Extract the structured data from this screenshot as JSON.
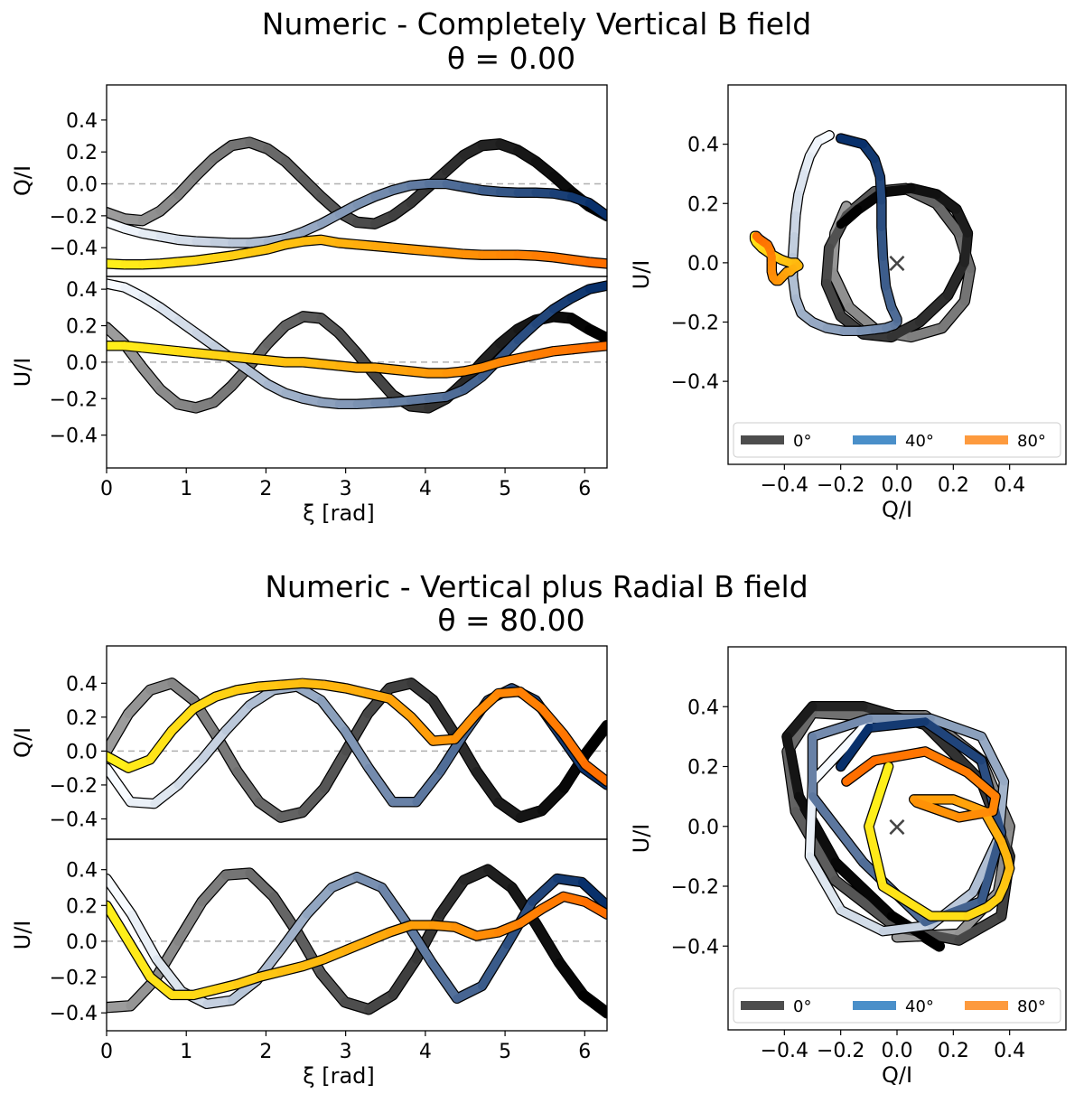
{
  "figure": {
    "colors": {
      "grayscale": "#000000",
      "blues": "#08306b",
      "oranges": "#ff6f00",
      "yellow_start": "#ffef1a",
      "legend_0": "#4d4d4d",
      "legend_40": "#4a8fc9",
      "legend_80": "#fd9a3e"
    },
    "legend": [
      "0°",
      "40°",
      "80°"
    ],
    "marker": "×"
  },
  "chart_data": [
    {
      "panel": "vertical-field",
      "title": "Numeric   -   Completely Vertical B field",
      "subtitle": "θ = 0.00",
      "type": "line",
      "xlabel": "ξ [rad]",
      "xticks": [
        "0",
        "1",
        "2",
        "3",
        "4",
        "5",
        "6"
      ],
      "xlim": [
        0,
        6.28
      ],
      "top": {
        "ylabel": "Q/I",
        "ylim": [
          -0.58,
          0.62
        ],
        "yticks": [
          -0.4,
          -0.2,
          0.0,
          0.2,
          0.4
        ],
        "ytick_labels": [
          "−0.4",
          "−0.2",
          "0.0",
          "0.2",
          "0.4"
        ],
        "series": [
          {
            "group": "grayscale",
            "values": [
              -0.18,
              -0.22,
              -0.23,
              -0.17,
              -0.07,
              0.05,
              0.16,
              0.24,
              0.26,
              0.22,
              0.14,
              0.03,
              -0.08,
              -0.18,
              -0.24,
              -0.25,
              -0.2,
              -0.12,
              -0.02,
              0.08,
              0.18,
              0.24,
              0.25,
              0.21,
              0.14,
              0.05,
              -0.05,
              -0.14,
              -0.2
            ]
          },
          {
            "group": "blues",
            "values": [
              -0.24,
              -0.28,
              -0.31,
              -0.33,
              -0.35,
              -0.36,
              -0.365,
              -0.37,
              -0.37,
              -0.36,
              -0.34,
              -0.3,
              -0.25,
              -0.19,
              -0.13,
              -0.08,
              -0.04,
              -0.01,
              0.0,
              0.0,
              -0.02,
              -0.04,
              -0.05,
              -0.055,
              -0.055,
              -0.06,
              -0.08,
              -0.12,
              -0.2
            ]
          },
          {
            "group": "oranges",
            "values": [
              -0.5,
              -0.505,
              -0.505,
              -0.5,
              -0.49,
              -0.48,
              -0.465,
              -0.45,
              -0.43,
              -0.41,
              -0.38,
              -0.36,
              -0.35,
              -0.37,
              -0.38,
              -0.39,
              -0.4,
              -0.41,
              -0.42,
              -0.43,
              -0.44,
              -0.445,
              -0.445,
              -0.445,
              -0.45,
              -0.46,
              -0.475,
              -0.49,
              -0.5
            ]
          }
        ]
      },
      "bottom": {
        "ylabel": "U/I",
        "ylim": [
          -0.58,
          0.47
        ],
        "yticks": [
          -0.4,
          -0.2,
          0.0,
          0.2,
          0.4
        ],
        "ytick_labels": [
          "−0.4",
          "−0.2",
          "0.0",
          "0.2",
          "0.4"
        ],
        "series": [
          {
            "group": "grayscale",
            "values": [
              0.19,
              0.1,
              -0.03,
              -0.15,
              -0.23,
              -0.25,
              -0.22,
              -0.13,
              -0.02,
              0.1,
              0.2,
              0.25,
              0.24,
              0.16,
              0.05,
              -0.07,
              -0.18,
              -0.24,
              -0.25,
              -0.2,
              -0.11,
              0.0,
              0.1,
              0.18,
              0.23,
              0.25,
              0.24,
              0.18,
              0.13
            ]
          },
          {
            "group": "blues",
            "values": [
              0.43,
              0.41,
              0.36,
              0.3,
              0.23,
              0.16,
              0.09,
              0.02,
              -0.05,
              -0.12,
              -0.17,
              -0.2,
              -0.22,
              -0.23,
              -0.23,
              -0.225,
              -0.22,
              -0.21,
              -0.2,
              -0.19,
              -0.15,
              -0.08,
              0.02,
              0.12,
              0.21,
              0.29,
              0.35,
              0.4,
              0.42
            ]
          },
          {
            "group": "oranges",
            "values": [
              0.09,
              0.09,
              0.08,
              0.07,
              0.06,
              0.05,
              0.04,
              0.03,
              0.02,
              0.01,
              0.0,
              0.0,
              -0.01,
              -0.02,
              -0.03,
              -0.03,
              -0.04,
              -0.05,
              -0.06,
              -0.06,
              -0.05,
              -0.03,
              0.0,
              0.02,
              0.04,
              0.06,
              0.07,
              0.08,
              0.09
            ]
          }
        ]
      },
      "polar": {
        "xlabel": "Q/I",
        "ylabel": "U/I",
        "xlim": [
          -0.6,
          0.6
        ],
        "ylim": [
          -0.68,
          0.6
        ],
        "xticks": [
          -0.4,
          -0.2,
          0.0,
          0.2,
          0.4
        ],
        "yticks": [
          -0.4,
          -0.2,
          0.0,
          0.2,
          0.4
        ],
        "tick_labels": [
          "−0.4",
          "−0.2",
          "0.0",
          "0.2",
          "0.4"
        ]
      }
    },
    {
      "panel": "radial-field",
      "title": "Numeric   -   Vertical plus Radial B field",
      "subtitle": "θ = 80.00",
      "type": "line",
      "xlabel": "ξ [rad]",
      "xticks": [
        "0",
        "1",
        "2",
        "3",
        "4",
        "5",
        "6"
      ],
      "xlim": [
        0,
        6.28
      ],
      "top": {
        "ylabel": "Q/I",
        "ylim": [
          -0.52,
          0.62
        ],
        "yticks": [
          -0.4,
          -0.2,
          0.0,
          0.2,
          0.4
        ],
        "ytick_labels": [
          "−0.4",
          "−0.2",
          "0.0",
          "0.2",
          "0.4"
        ],
        "series": [
          {
            "group": "grayscale",
            "values": [
              0.0,
              0.22,
              0.36,
              0.4,
              0.3,
              0.1,
              -0.12,
              -0.3,
              -0.39,
              -0.36,
              -0.22,
              0.0,
              0.22,
              0.37,
              0.4,
              0.3,
              0.1,
              -0.12,
              -0.3,
              -0.39,
              -0.35,
              -0.22,
              -0.02,
              0.15
            ]
          },
          {
            "group": "blues",
            "values": [
              -0.1,
              -0.3,
              -0.31,
              -0.2,
              -0.05,
              0.12,
              0.27,
              0.36,
              0.38,
              0.3,
              0.12,
              -0.1,
              -0.3,
              -0.3,
              -0.12,
              0.1,
              0.3,
              0.37,
              0.3,
              0.1,
              -0.1,
              -0.2
            ]
          },
          {
            "group": "oranges",
            "values": [
              -0.03,
              -0.1,
              -0.05,
              0.12,
              0.25,
              0.32,
              0.36,
              0.38,
              0.39,
              0.4,
              0.39,
              0.37,
              0.34,
              0.31,
              0.2,
              0.06,
              0.07,
              0.22,
              0.34,
              0.35,
              0.25,
              0.1,
              -0.08,
              -0.18
            ]
          }
        ]
      },
      "bottom": {
        "ylabel": "U/I",
        "ylim": [
          -0.5,
          0.57
        ],
        "yticks": [
          -0.4,
          -0.2,
          0.0,
          0.2,
          0.4
        ],
        "ytick_labels": [
          "−0.4",
          "−0.2",
          "0.0",
          "0.2",
          "0.4"
        ],
        "series": [
          {
            "group": "grayscale",
            "values": [
              -0.37,
              -0.36,
              -0.22,
              0.0,
              0.22,
              0.37,
              0.38,
              0.25,
              0.05,
              -0.18,
              -0.34,
              -0.38,
              -0.3,
              -0.1,
              0.15,
              0.34,
              0.4,
              0.3,
              0.1,
              -0.12,
              -0.3,
              -0.4
            ]
          },
          {
            "group": "blues",
            "values": [
              0.35,
              0.15,
              -0.1,
              -0.28,
              -0.35,
              -0.33,
              -0.22,
              -0.04,
              0.15,
              0.3,
              0.36,
              0.3,
              0.1,
              -0.12,
              -0.32,
              -0.25,
              -0.02,
              0.22,
              0.35,
              0.33,
              0.2
            ]
          },
          {
            "group": "oranges",
            "values": [
              0.2,
              0.0,
              -0.2,
              -0.3,
              -0.3,
              -0.27,
              -0.24,
              -0.2,
              -0.17,
              -0.14,
              -0.1,
              -0.05,
              0.0,
              0.05,
              0.09,
              0.09,
              0.08,
              0.03,
              0.05,
              0.1,
              0.18,
              0.25,
              0.22,
              0.15
            ]
          }
        ]
      },
      "polar": {
        "xlabel": "Q/I",
        "ylabel": "U/I",
        "xlim": [
          -0.6,
          0.6
        ],
        "ylim": [
          -0.68,
          0.6
        ],
        "xticks": [
          -0.4,
          -0.2,
          0.0,
          0.2,
          0.4
        ],
        "yticks": [
          -0.4,
          -0.2,
          0.0,
          0.2,
          0.4
        ],
        "tick_labels": [
          "−0.4",
          "−0.2",
          "0.0",
          "0.2",
          "0.4"
        ]
      }
    }
  ]
}
